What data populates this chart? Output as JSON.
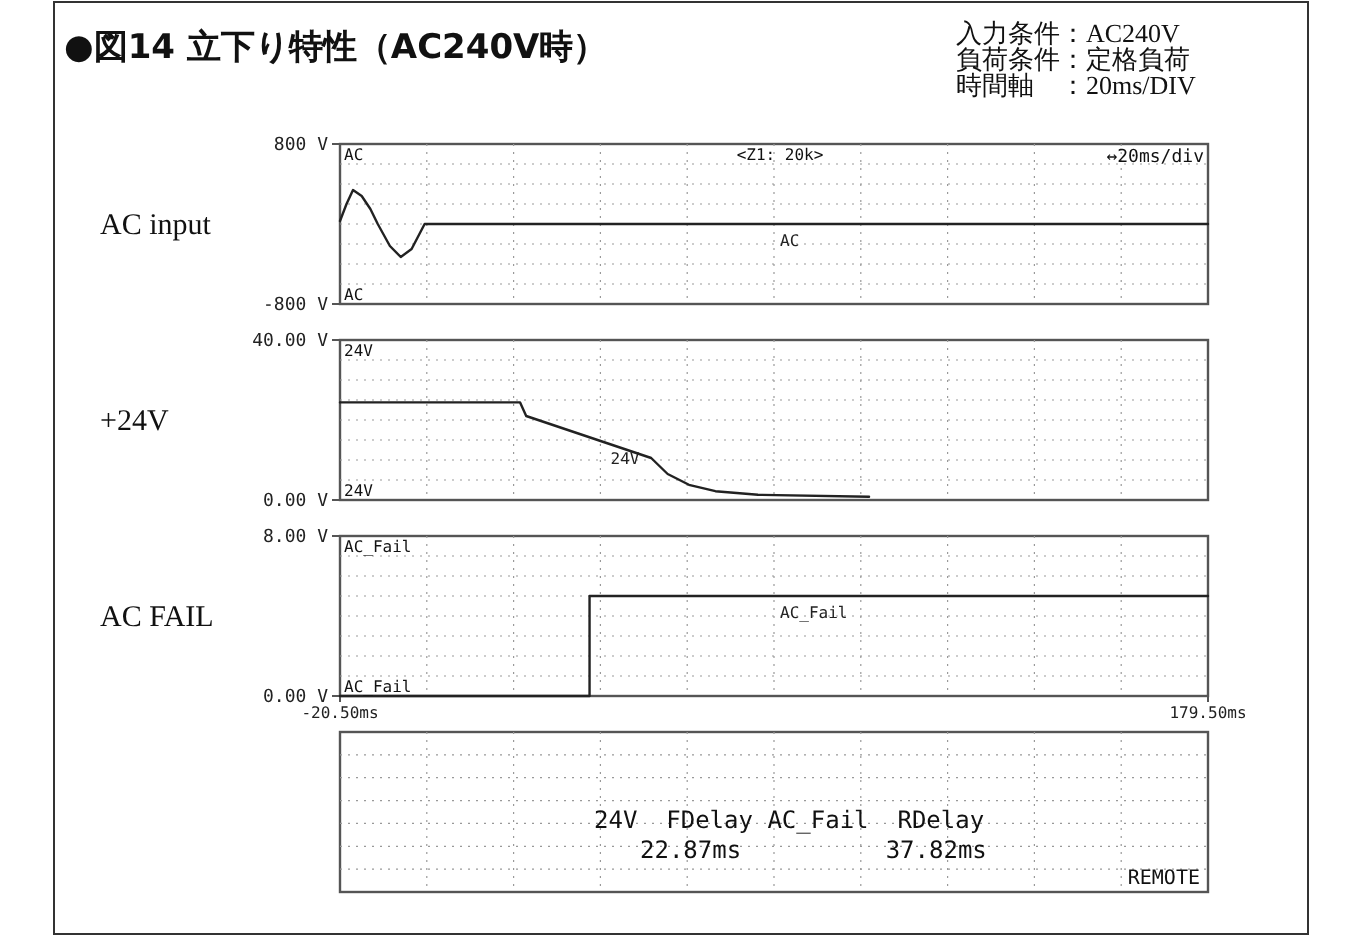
{
  "chart_data": [
    {
      "type": "line",
      "title": "●図14 立下り特性（AC240V時）",
      "ylabel": "AC input",
      "xlim": [
        -20.5,
        179.5
      ],
      "ylim": [
        -800,
        800
      ],
      "yticks": [
        {
          "value": 800,
          "label": "800 V"
        },
        {
          "value": -800,
          "label": "-800 V"
        }
      ],
      "tick_labels": "y",
      "grid": true,
      "legend": false,
      "line_style": "solid",
      "marker": "none",
      "annotations": [
        "AC",
        "AC",
        "<Z1: 20k>",
        "↔20ms/div",
        "入力条件：AC240V",
        "負荷条件：定格負荷",
        "時間軸　：20ms/DIV"
      ],
      "series": [
        {
          "name": "AC",
          "color": "#222222",
          "x": [
            -20.5,
            -19,
            -17.5,
            -15.5,
            -13.5,
            -11.8,
            -9,
            -6.5,
            -4,
            -1,
            179.5
          ],
          "values": [
            30,
            200,
            340,
            280,
            150,
            0,
            -220,
            -330,
            -250,
            0,
            0
          ]
        }
      ]
    },
    {
      "type": "line",
      "ylabel": "+24V",
      "xlim": [
        -20.5,
        179.5
      ],
      "ylim": [
        0,
        40
      ],
      "yticks": [
        {
          "value": 40,
          "label": "40.00 V"
        },
        {
          "value": 0,
          "label": "0.00 V"
        }
      ],
      "tick_labels": "y",
      "grid": true,
      "legend": false,
      "line_style": "solid",
      "marker": "none",
      "annotations": [
        "24V",
        "24V"
      ],
      "series": [
        {
          "name": "24V",
          "color": "#222222",
          "x": [
            -20.5,
            21,
            22.4,
            51.2,
            55,
            59.9,
            66,
            75.8,
            101.4
          ],
          "values": [
            24.4,
            24.4,
            21,
            10.5,
            6.5,
            3.8,
            2.2,
            1.3,
            0.8
          ]
        }
      ]
    },
    {
      "type": "line",
      "ylabel": "AC FAIL",
      "xlim": [
        -20.5,
        179.5
      ],
      "xticks": [
        {
          "value": -20.5,
          "label": "-20.50ms"
        },
        {
          "value": 179.5,
          "label": "179.50ms"
        }
      ],
      "ylim": [
        0,
        8
      ],
      "yticks": [
        {
          "value": 8,
          "label": "8.00 V"
        },
        {
          "value": 0,
          "label": "0.00 V"
        }
      ],
      "grid": true,
      "legend": false,
      "line_style": "solid",
      "marker": "none",
      "annotations": [
        "AC_Fail",
        "AC_Fail"
      ],
      "series": [
        {
          "name": "AC_Fail",
          "color": "#222222",
          "x": [
            -20.5,
            37,
            37,
            179.5
          ],
          "values": [
            0,
            0,
            5,
            5
          ]
        }
      ]
    },
    {
      "type": "other",
      "annotations": [
        "24V  FDelay AC_Fail  RDelay",
        "22.87ms          37.82ms",
        "REMOTE"
      ]
    }
  ]
}
